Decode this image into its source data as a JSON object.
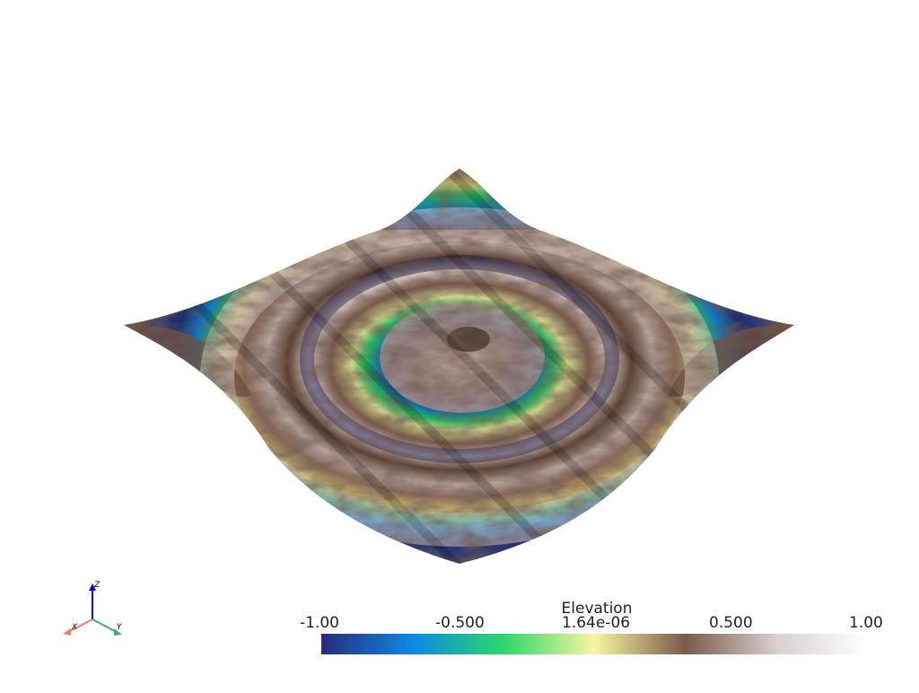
{
  "viewer": {
    "scalar_bar": {
      "title": "Elevation",
      "ticks": [
        "-1.00",
        "-0.500",
        "1.64e-06",
        "0.500",
        "1.00"
      ],
      "range": [
        -1.0,
        1.0
      ],
      "colormap_stops": [
        "#2a2a7a",
        "#0a8ae6",
        "#2bd86a",
        "#f6f6a0",
        "#7a5a4a",
        "#d9cfcf",
        "#ffffff"
      ]
    },
    "axes": {
      "x_label": "X",
      "y_label": "Y",
      "z_label": "Z",
      "x_color": "#f08060",
      "y_color": "#40b070",
      "z_color": "#0000d0"
    },
    "surface": {
      "description_colors": [
        "#2a2a7a",
        "#0a8ae6",
        "#2bd86a",
        "#f6f6a0",
        "#7a5a4a",
        "#d9cfcf"
      ]
    }
  }
}
